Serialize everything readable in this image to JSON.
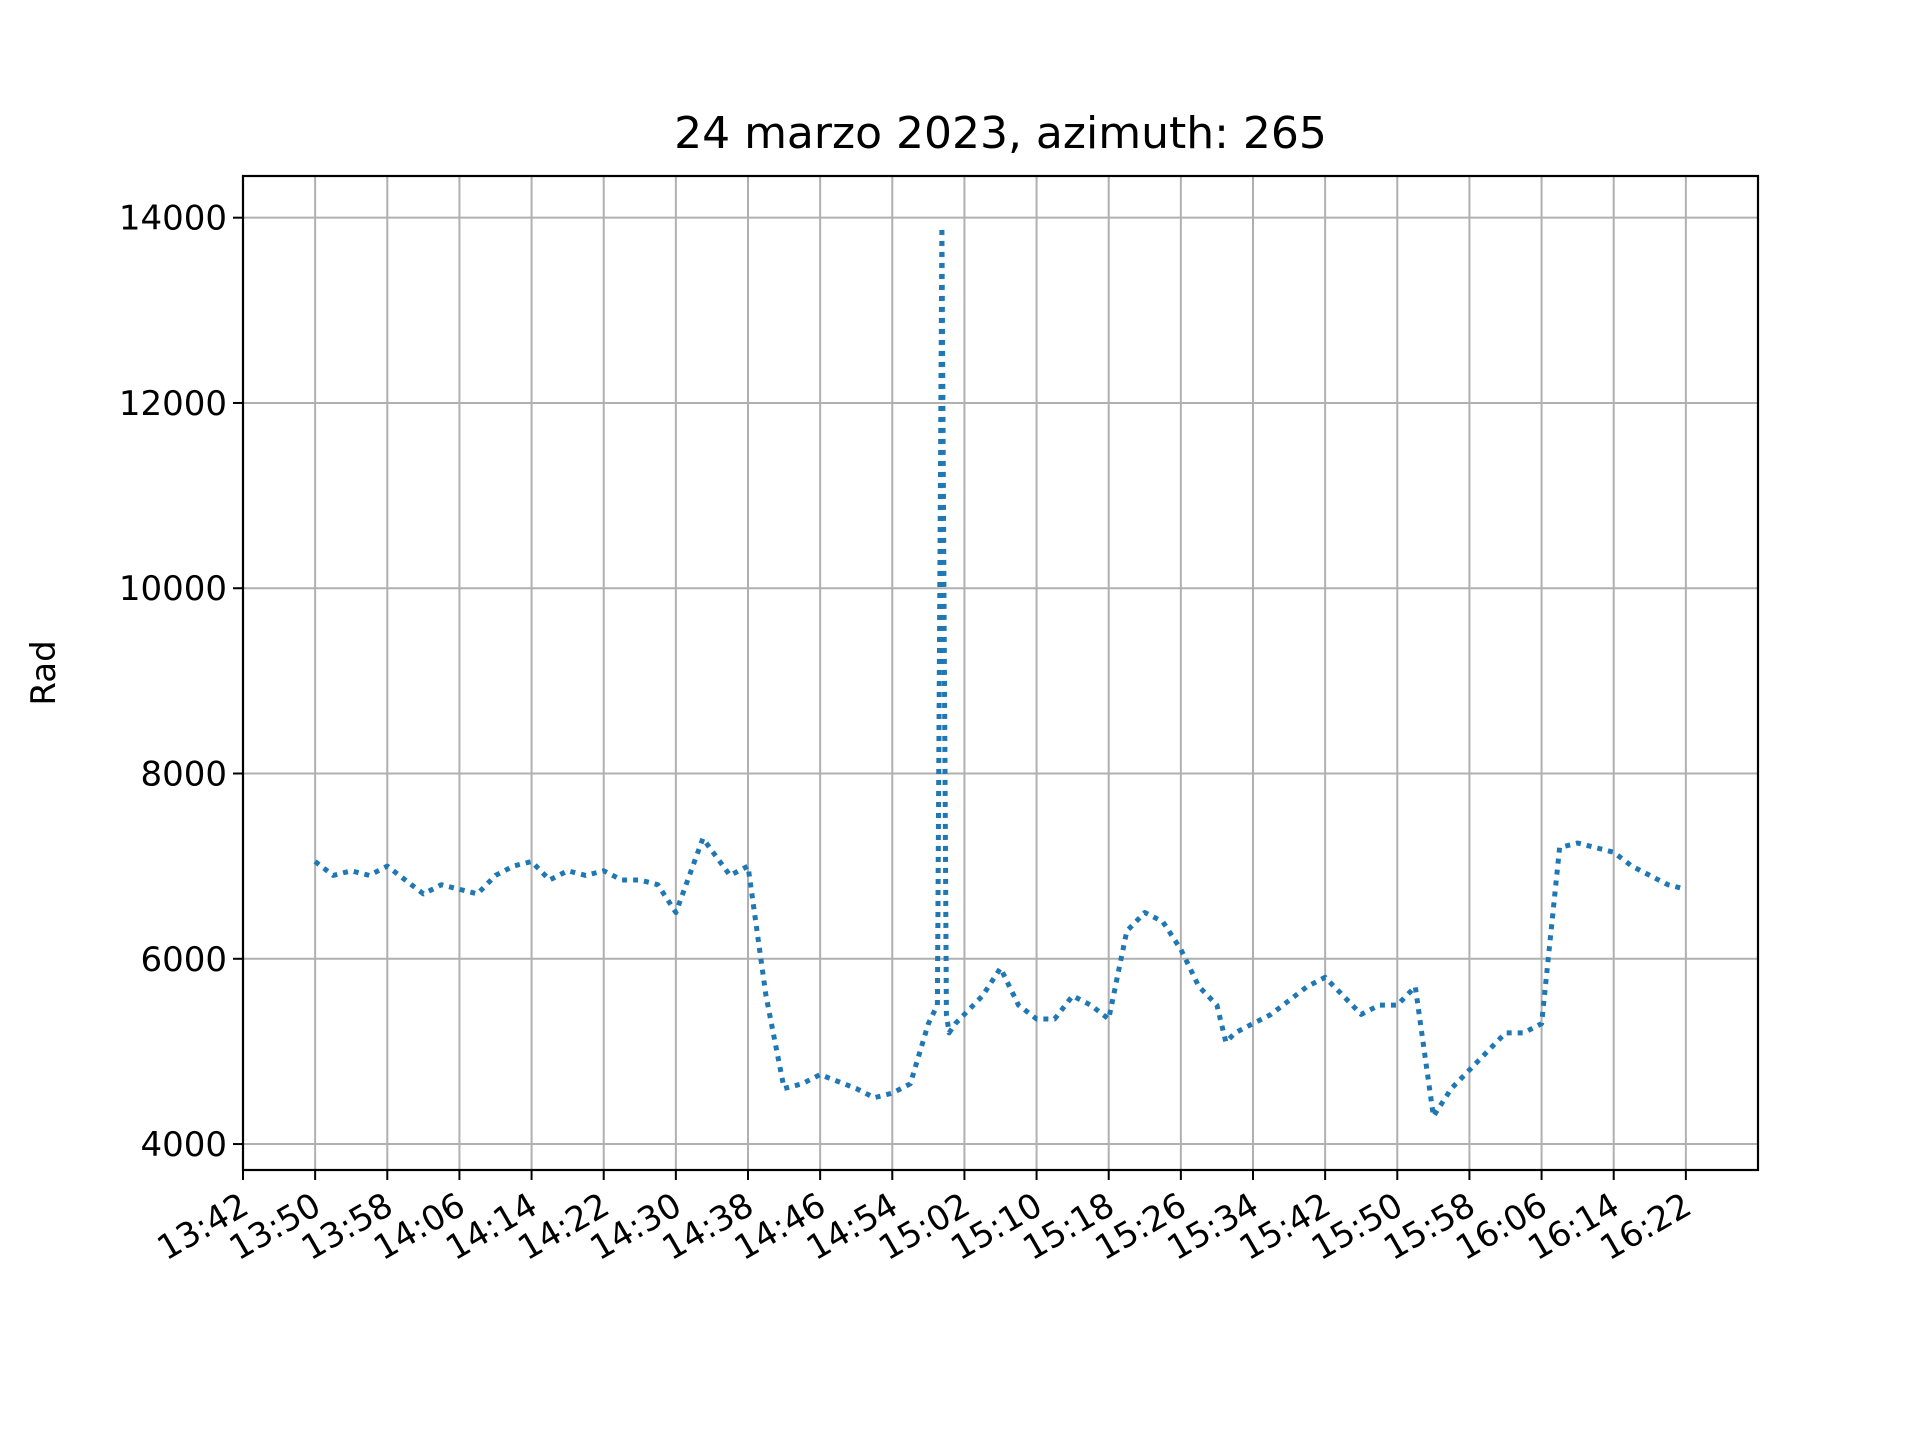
{
  "chart_data": {
    "type": "line",
    "title": "24 marzo 2023, azimuth: 265",
    "xlabel": "",
    "ylabel": "Rad",
    "x_ticks": [
      "13:42",
      "13:50",
      "13:58",
      "14:06",
      "14:14",
      "14:22",
      "14:30",
      "14:38",
      "14:46",
      "14:54",
      "15:02",
      "15:10",
      "15:18",
      "15:26",
      "15:34",
      "15:42",
      "15:50",
      "15:58",
      "16:06",
      "16:14",
      "16:22"
    ],
    "y_ticks": [
      4000,
      6000,
      8000,
      10000,
      12000,
      14000
    ],
    "xlim": [
      "13:42",
      "16:30"
    ],
    "ylim": [
      3720,
      14450
    ],
    "grid": true,
    "line_style": "dotted",
    "color": "#1f77b4",
    "series": [
      {
        "x": [
          "13:50",
          "13:52",
          "13:54",
          "13:56",
          "13:58",
          "14:00",
          "14:02",
          "14:04",
          "14:06",
          "14:08",
          "14:10",
          "14:12",
          "14:14",
          "14:16",
          "14:18",
          "14:20",
          "14:22",
          "14:24",
          "14:26",
          "14:28",
          "14:30",
          "14:33",
          "14:36",
          "14:38",
          "14:40",
          "14:42",
          "14:44",
          "14:46",
          "14:50",
          "14:52",
          "14:54",
          "14:56",
          "14:58",
          "14:59",
          "14:59.5",
          "15:00",
          "15:00.3",
          "15:01",
          "15:02",
          "15:04",
          "15:06",
          "15:07",
          "15:08",
          "15:10",
          "15:12",
          "15:14",
          "15:16",
          "15:18",
          "15:20",
          "15:22",
          "15:24",
          "15:26",
          "15:28",
          "15:30",
          "15:31",
          "15:32",
          "15:34",
          "15:36",
          "15:38",
          "15:40",
          "15:42",
          "15:44",
          "15:46",
          "15:48",
          "15:50",
          "15:52",
          "15:54",
          "15:56",
          "15:58",
          "16:00",
          "16:02",
          "16:04",
          "16:06",
          "16:08",
          "16:10",
          "16:12",
          "16:14",
          "16:16",
          "16:18",
          "16:20",
          "16:22"
        ],
        "y": [
          7050,
          6900,
          6950,
          6900,
          7000,
          6850,
          6700,
          6800,
          6750,
          6700,
          6900,
          7000,
          7050,
          6850,
          6950,
          6900,
          6950,
          6850,
          6850,
          6800,
          6500,
          7300,
          6900,
          7000,
          5600,
          4600,
          4650,
          4750,
          4600,
          4500,
          4550,
          4650,
          5300,
          5500,
          13900,
          5400,
          5200,
          5300,
          5400,
          5600,
          5900,
          5700,
          5500,
          5350,
          5350,
          5600,
          5500,
          5350,
          6300,
          6500,
          6400,
          6100,
          5700,
          5500,
          5100,
          5200,
          5300,
          5400,
          5550,
          5700,
          5800,
          5600,
          5400,
          5500,
          5500,
          5700,
          4300,
          4600,
          4800,
          5000,
          5200,
          5200,
          5300,
          7200,
          7250,
          7200,
          7150,
          7000,
          6900,
          6800,
          6750
        ]
      }
    ]
  }
}
